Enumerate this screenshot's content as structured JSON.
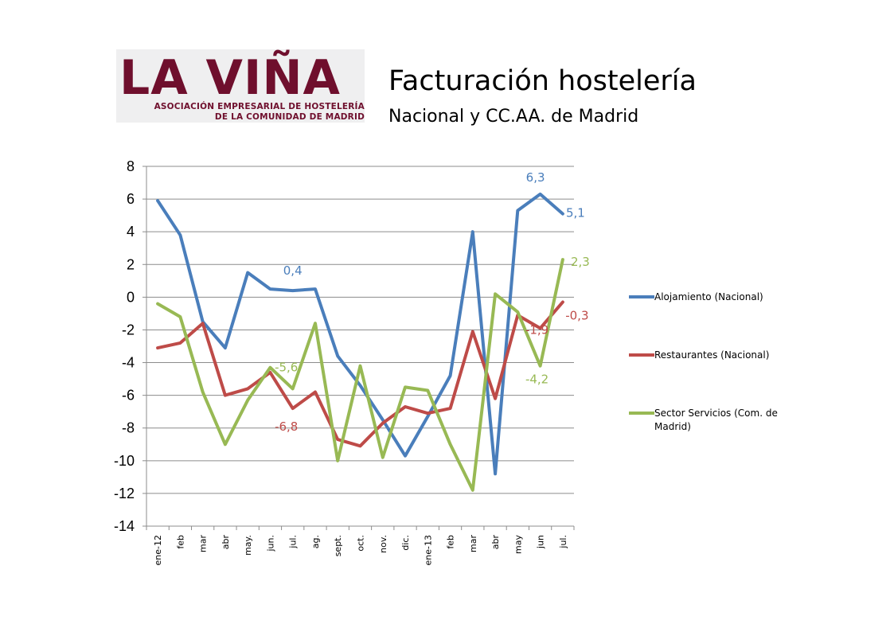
{
  "logo": {
    "name": "LA VIÑA",
    "line1": "ASOCIACIÓN EMPRESARIAL DE HOSTELERÍA",
    "line2": "DE LA COMUNIDAD DE MADRID",
    "color": "#6f0f2d"
  },
  "header": {
    "title": "Facturación hostelería",
    "subtitle": "Nacional y CC.AA. de Madrid"
  },
  "chart_data": {
    "type": "line",
    "title": "Facturación hostelería",
    "subtitle": "Nacional y CC.AA. de Madrid",
    "xlabel": "",
    "ylabel": "",
    "ylim": [
      -14,
      8
    ],
    "yticks": [
      8,
      6,
      4,
      2,
      0,
      -2,
      -4,
      -6,
      -8,
      -10,
      -12,
      -14
    ],
    "grid": "horizontal",
    "legend": "right",
    "categories": [
      "ene-12",
      "feb",
      "mar",
      "abr",
      "may.",
      "jun.",
      "jul.",
      "ag.",
      "sept.",
      "oct.",
      "nov.",
      "dic.",
      "ene-13",
      "feb",
      "mar",
      "abr",
      "may",
      "jun",
      "jul."
    ],
    "series": [
      {
        "name": "Alojamiento (Nacional)",
        "color": "#4a7ebb",
        "values": [
          5.9,
          3.8,
          -1.5,
          -3.1,
          1.5,
          0.5,
          0.4,
          0.5,
          -3.6,
          -5.4,
          -7.5,
          -9.7,
          -7.3,
          -4.8,
          4.0,
          -10.8,
          5.3,
          6.3,
          5.1
        ]
      },
      {
        "name": "Restaurantes (Nacional)",
        "color": "#be4b48",
        "values": [
          -3.1,
          -2.8,
          -1.6,
          -6.0,
          -5.6,
          -4.6,
          -6.8,
          -5.8,
          -8.7,
          -9.1,
          -7.7,
          -6.7,
          -7.1,
          -6.8,
          -2.1,
          -6.2,
          -1.1,
          -1.9,
          -0.3
        ]
      },
      {
        "name": "Sector Servicios (Com. de Madrid)",
        "color": "#98b954",
        "values": [
          -0.4,
          -1.2,
          -5.8,
          -9.0,
          -6.3,
          -4.3,
          -5.6,
          -1.6,
          -10.0,
          -4.2,
          -9.8,
          -5.5,
          -5.7,
          -9.0,
          -11.8,
          0.2,
          -0.9,
          -4.2,
          2.3
        ]
      }
    ],
    "data_labels": [
      {
        "series": 0,
        "index": 6,
        "text": "0,4"
      },
      {
        "series": 0,
        "index": 17,
        "text": "6,3"
      },
      {
        "series": 0,
        "index": 18,
        "text": "5,1"
      },
      {
        "series": 1,
        "index": 6,
        "text": "-6,8"
      },
      {
        "series": 1,
        "index": 17,
        "text": "-1,9"
      },
      {
        "series": 1,
        "index": 18,
        "text": "-0,3"
      },
      {
        "series": 2,
        "index": 6,
        "text": "-5,6"
      },
      {
        "series": 2,
        "index": 17,
        "text": "-4,2"
      },
      {
        "series": 2,
        "index": 18,
        "text": "2,3"
      }
    ]
  }
}
